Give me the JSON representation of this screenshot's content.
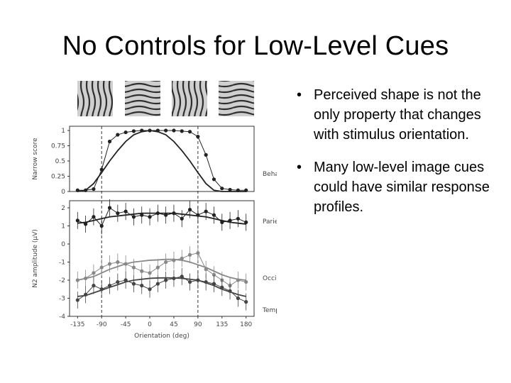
{
  "slide": {
    "title": "No Controls for Low-Level Cues",
    "bullets": [
      "Perceived shape is not the only property that changes with stimulus orientation.",
      "Many low-level image cues could have similar response profiles."
    ],
    "bullet_symbol": "•"
  },
  "chart_data": {
    "type": "line",
    "x": [
      -135,
      -120,
      -105,
      -90,
      -75,
      -60,
      -45,
      -30,
      -15,
      0,
      15,
      30,
      45,
      60,
      75,
      90,
      105,
      120,
      135,
      150,
      165,
      180
    ],
    "xlabel": "Orientation (deg)",
    "x_ticks": [
      "-135",
      "-90",
      "-45",
      "0",
      "45",
      "90",
      "135",
      "180"
    ],
    "x_tick_values": [
      -135,
      -90,
      -45,
      0,
      45,
      90,
      135,
      180
    ],
    "xlim": [
      -150,
      195
    ],
    "dashed_vlines": [
      -90,
      90
    ],
    "panels": [
      {
        "name": "Behavioural",
        "ylabel": "Narrow score",
        "y_ticks": [
          "0",
          "0.25",
          "0.5",
          "0.75",
          "1"
        ],
        "y_tick_values": [
          0,
          0.25,
          0.5,
          0.75,
          1
        ],
        "ylim": [
          0,
          1
        ],
        "series": [
          {
            "role": "data",
            "color": "#222222",
            "values": [
              0.02,
              0.02,
              0.04,
              0.36,
              0.82,
              0.93,
              0.97,
              0.99,
              1.0,
              1.0,
              1.0,
              1.0,
              1.0,
              0.99,
              0.98,
              0.9,
              0.6,
              0.2,
              0.05,
              0.03,
              0.02,
              0.02
            ]
          },
          {
            "role": "fit",
            "color": "#222222",
            "values": [
              0.0,
              0.02,
              0.13,
              0.31,
              0.5,
              0.67,
              0.82,
              0.93,
              0.98,
              1.0,
              0.98,
              0.93,
              0.82,
              0.67,
              0.5,
              0.31,
              0.13,
              0.02,
              0.0,
              0.0,
              0.0,
              0.0
            ]
          }
        ]
      },
      {
        "name": "Parietal",
        "ylabel": "N2 amplitude (μV)",
        "y_ticks": [
          "2",
          "1",
          "0",
          "-1",
          "-2",
          "-3",
          "-4"
        ],
        "y_tick_values": [
          2,
          1,
          0,
          -1,
          -2,
          -3,
          -4
        ],
        "ylim": [
          -4,
          2
        ],
        "series": [
          {
            "role": "data",
            "color": "#222222",
            "values": [
              1.3,
              1.1,
              1.5,
              1.0,
              2.0,
              1.7,
              1.8,
              1.5,
              1.6,
              1.5,
              1.7,
              1.6,
              1.7,
              1.4,
              1.9,
              1.6,
              1.8,
              1.6,
              1.2,
              1.3,
              1.4,
              1.2
            ]
          },
          {
            "role": "fit",
            "color": "#222222",
            "values": [
              1.15,
              1.2,
              1.3,
              1.4,
              1.5,
              1.55,
              1.6,
              1.65,
              1.7,
              1.7,
              1.7,
              1.7,
              1.7,
              1.65,
              1.6,
              1.55,
              1.5,
              1.4,
              1.3,
              1.2,
              1.15,
              1.1
            ]
          }
        ]
      },
      {
        "name": "Occipital",
        "series": [
          {
            "role": "data",
            "color": "#888888",
            "values": [
              -2.0,
              -1.9,
              -1.6,
              -1.3,
              -1.1,
              -1.0,
              -1.1,
              -1.3,
              -1.5,
              -1.6,
              -1.3,
              -1.0,
              -0.9,
              -0.8,
              -0.6,
              -0.5,
              -1.4,
              -1.7,
              -2.0,
              -2.3,
              -2.0,
              -2.1
            ]
          },
          {
            "role": "fit",
            "color": "#888888",
            "values": [
              -2.0,
              -1.9,
              -1.8,
              -1.6,
              -1.4,
              -1.25,
              -1.1,
              -1.0,
              -0.95,
              -0.9,
              -0.88,
              -0.85,
              -0.85,
              -0.9,
              -1.0,
              -1.15,
              -1.3,
              -1.5,
              -1.7,
              -1.85,
              -1.95,
              -2.0
            ]
          }
        ]
      },
      {
        "name": "Temporal",
        "series": [
          {
            "role": "data",
            "color": "#444444",
            "values": [
              -3.1,
              -2.8,
              -2.3,
              -2.5,
              -2.3,
              -2.1,
              -2.0,
              -2.2,
              -2.3,
              -2.5,
              -2.2,
              -2.0,
              -1.9,
              -1.8,
              -2.1,
              -2.0,
              -2.1,
              -2.2,
              -2.4,
              -2.6,
              -3.0,
              -3.2
            ]
          },
          {
            "role": "fit",
            "color": "#444444",
            "values": [
              -2.9,
              -2.85,
              -2.7,
              -2.55,
              -2.4,
              -2.25,
              -2.1,
              -2.0,
              -1.95,
              -1.9,
              -1.88,
              -1.87,
              -1.88,
              -1.9,
              -1.95,
              -2.0,
              -2.15,
              -2.3,
              -2.5,
              -2.65,
              -2.8,
              -2.9
            ]
          }
        ]
      }
    ]
  }
}
